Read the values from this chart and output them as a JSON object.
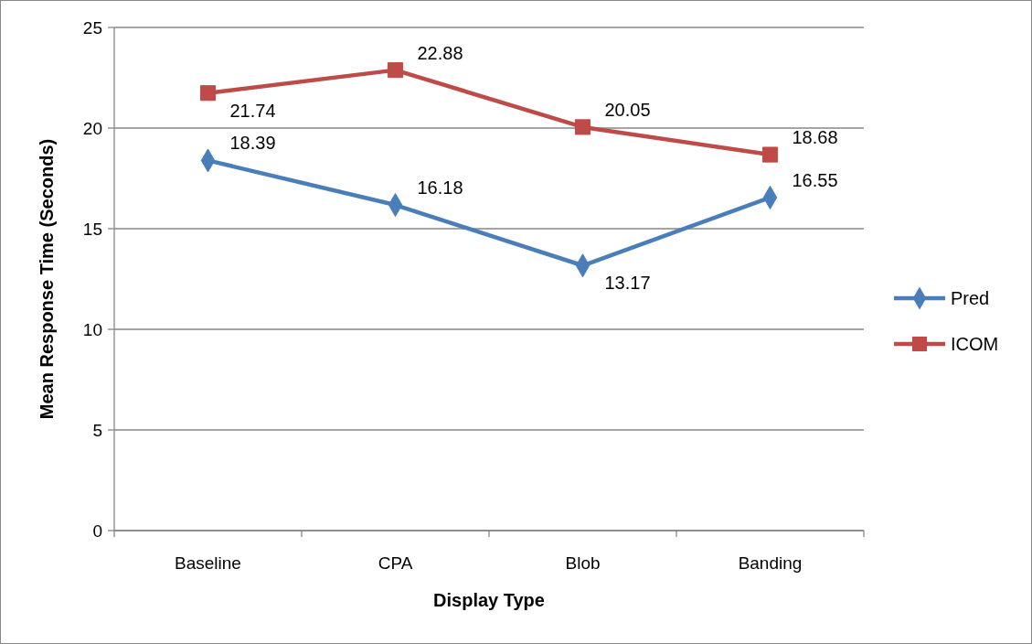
{
  "chart_data": {
    "type": "line",
    "xlabel": "Display Type",
    "ylabel": "Mean Response Time (Seconds)",
    "categories": [
      "Baseline",
      "CPA",
      "Blob",
      "Banding"
    ],
    "series": [
      {
        "name": "Pred",
        "color": "#4a7ebb",
        "values": [
          18.39,
          16.18,
          13.17,
          16.55
        ],
        "marker": "diamond"
      },
      {
        "name": "ICOM",
        "color": "#be4b48",
        "values": [
          21.74,
          22.88,
          20.05,
          18.68
        ],
        "marker": "square"
      }
    ],
    "ylim": [
      0,
      25
    ],
    "yticks": [
      0,
      5,
      10,
      15,
      20,
      25
    ],
    "grid": "y",
    "legend": "right",
    "data_labels": true
  }
}
